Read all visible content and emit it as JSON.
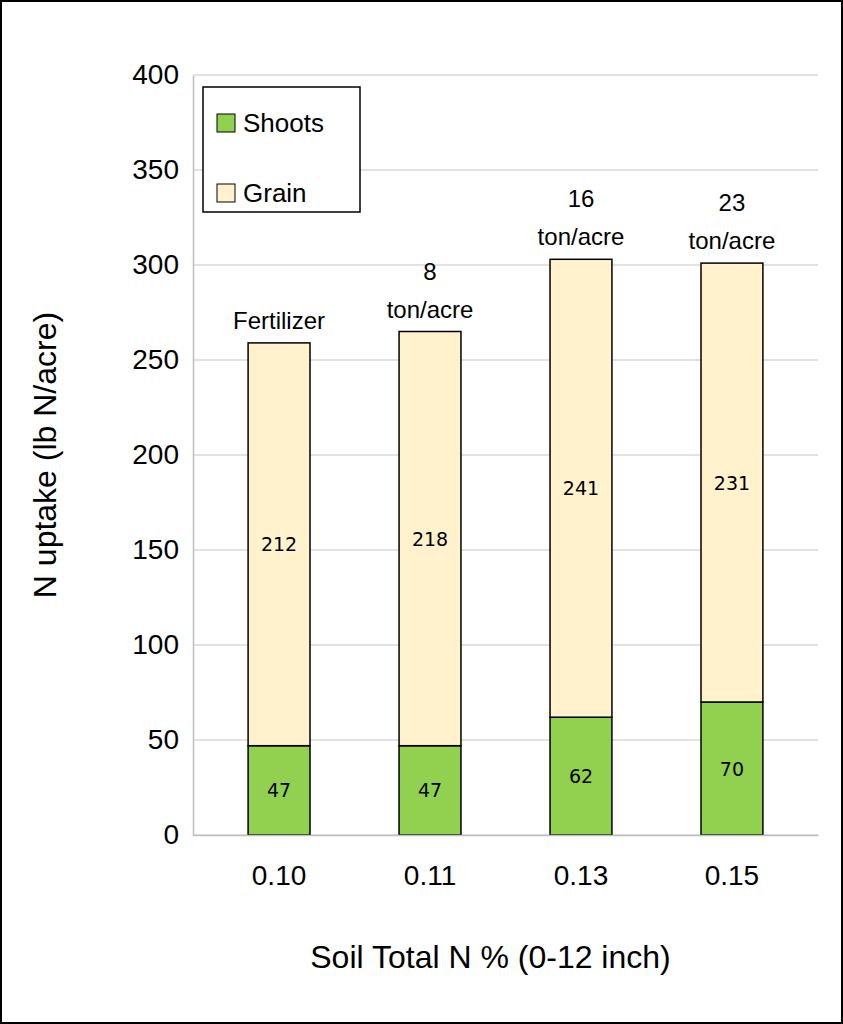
{
  "chart_data": {
    "type": "bar",
    "stacked": true,
    "data_labels": true,
    "grid": true,
    "legend": "top-left",
    "x_label": "Soil Total N % (0-12 inch)",
    "y_label": "N uptake (lb N/acre)",
    "categories": [
      "0.10",
      "0.11",
      "0.13",
      "0.15"
    ],
    "annotations": [
      [
        "Fertilizer"
      ],
      [
        "8",
        "ton/acre"
      ],
      [
        "16",
        "ton/acre"
      ],
      [
        "23",
        "ton/acre"
      ]
    ],
    "series": [
      {
        "name": "Shoots",
        "color": "#92d050",
        "values": [
          47,
          47,
          62,
          70
        ]
      },
      {
        "name": "Grain",
        "color": "#fff2cc",
        "values": [
          212,
          218,
          241,
          231
        ]
      }
    ],
    "ylim": [
      0,
      400
    ],
    "yticks": [
      0,
      50,
      100,
      150,
      200,
      250,
      300,
      350,
      400
    ]
  }
}
